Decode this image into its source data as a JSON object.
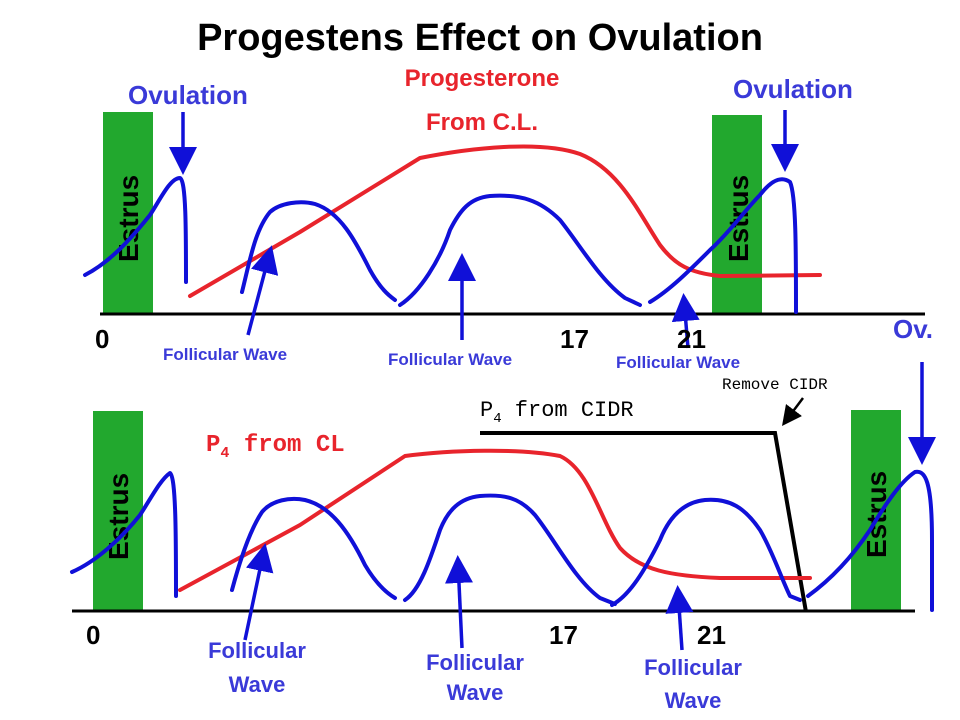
{
  "title": "Progestens Effect on Ovulation",
  "top": {
    "ovulation_left": "Ovulation",
    "ovulation_right": "Ovulation",
    "progesterone_line1": "Progesterone",
    "progesterone_line2": "From C.L.",
    "estrus_left": "Estrus",
    "estrus_right": "Estrus",
    "axis_0": "0",
    "axis_17": "17",
    "axis_21": "21",
    "fw1": "Follicular Wave",
    "fw2": "Follicular Wave",
    "fw3": "Follicular Wave"
  },
  "bottom": {
    "ov": "Ov.",
    "remove_cidr": "Remove CIDR",
    "p4_cidr_prefix": "P",
    "p4_cidr_sub": "4",
    "p4_cidr_suffix": " from CIDR",
    "p4_cl_prefix": "P",
    "p4_cl_sub": "4",
    "p4_cl_suffix": " from CL",
    "estrus_left": "Estrus",
    "estrus_right": "Estrus",
    "axis_0": "0",
    "axis_17": "17",
    "axis_21": "21",
    "fw1_line1": "Follicular",
    "fw1_line2": "Wave",
    "fw2_line1": "Follicular",
    "fw2_line2": "Wave",
    "fw3_line1": "Follicular",
    "fw3_line2": "Wave"
  },
  "colors": {
    "estrus_box": "#22a82e",
    "follicle_curve": "#1010d8",
    "progesterone_curve": "#e8242c",
    "label_blue": "#3a3ad8"
  }
}
